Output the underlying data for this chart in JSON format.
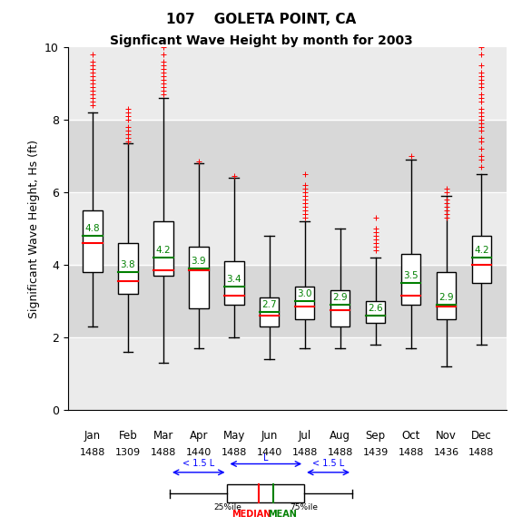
{
  "title_line1": "107    GOLETA POINT, CA",
  "title_line2": "Signficant Wave Height by month for 2003",
  "ylabel": "Significant Wave Height, Hs (ft)",
  "months": [
    "Jan",
    "Feb",
    "Mar",
    "Apr",
    "May",
    "Jun",
    "Jul",
    "Aug",
    "Sep",
    "Oct",
    "Nov",
    "Dec"
  ],
  "counts": [
    "1488",
    "1309",
    "1488",
    "1440",
    "1488",
    "1440",
    "1488",
    "1488",
    "1439",
    "1488",
    "1436",
    "1488"
  ],
  "ylim": [
    0,
    10
  ],
  "yticks": [
    0,
    2,
    4,
    6,
    8,
    10
  ],
  "box_data": {
    "Jan": {
      "q1": 3.8,
      "median": 4.6,
      "q3": 5.5,
      "whislo": 2.3,
      "whishi": 8.2,
      "mean": 4.8,
      "fliers_above": [
        8.4,
        8.5,
        8.6,
        8.7,
        8.8,
        8.9,
        9.0,
        9.1,
        9.2,
        9.3,
        9.4,
        9.5,
        9.6,
        9.8,
        10.1
      ]
    },
    "Feb": {
      "q1": 3.2,
      "median": 3.55,
      "q3": 4.6,
      "whislo": 1.6,
      "whishi": 7.35,
      "mean": 3.8,
      "fliers_above": [
        7.4,
        7.5,
        7.6,
        7.7,
        7.8,
        8.0,
        8.1,
        8.2,
        8.3
      ]
    },
    "Mar": {
      "q1": 3.7,
      "median": 3.85,
      "q3": 5.2,
      "whislo": 1.3,
      "whishi": 8.6,
      "mean": 4.2,
      "fliers_above": [
        8.7,
        8.8,
        8.9,
        9.0,
        9.1,
        9.2,
        9.3,
        9.4,
        9.5,
        9.6,
        9.8,
        10.0
      ]
    },
    "Apr": {
      "q1": 2.8,
      "median": 3.85,
      "q3": 4.5,
      "whislo": 1.7,
      "whishi": 6.8,
      "mean": 3.9,
      "fliers_above": [
        6.85
      ]
    },
    "May": {
      "q1": 2.9,
      "median": 3.15,
      "q3": 4.1,
      "whislo": 2.0,
      "whishi": 6.4,
      "mean": 3.4,
      "fliers_above": [
        6.45
      ]
    },
    "Jun": {
      "q1": 2.3,
      "median": 2.6,
      "q3": 3.1,
      "whislo": 1.4,
      "whishi": 4.8,
      "mean": 2.7,
      "fliers_above": []
    },
    "Jul": {
      "q1": 2.5,
      "median": 2.85,
      "q3": 3.4,
      "whislo": 1.7,
      "whishi": 5.2,
      "mean": 3.0,
      "fliers_above": [
        5.3,
        5.4,
        5.5,
        5.6,
        5.7,
        5.8,
        5.9,
        6.0,
        6.1,
        6.2,
        6.5
      ]
    },
    "Aug": {
      "q1": 2.3,
      "median": 2.75,
      "q3": 3.3,
      "whislo": 1.7,
      "whishi": 5.0,
      "mean": 2.9,
      "fliers_above": []
    },
    "Sep": {
      "q1": 2.4,
      "median": 2.6,
      "q3": 3.0,
      "whislo": 1.8,
      "whishi": 4.2,
      "mean": 2.6,
      "fliers_above": [
        4.4,
        4.5,
        4.6,
        4.7,
        4.8,
        4.9,
        5.0,
        5.3
      ]
    },
    "Oct": {
      "q1": 2.9,
      "median": 3.15,
      "q3": 4.3,
      "whislo": 1.7,
      "whishi": 6.9,
      "mean": 3.5,
      "fliers_above": [
        7.0
      ]
    },
    "Nov": {
      "q1": 2.5,
      "median": 2.85,
      "q3": 3.8,
      "whislo": 1.2,
      "whishi": 5.9,
      "mean": 2.9,
      "fliers_above": [
        6.0,
        6.1,
        5.3,
        5.4,
        5.5,
        5.6,
        5.7,
        5.8
      ]
    },
    "Dec": {
      "q1": 3.5,
      "median": 4.0,
      "q3": 4.8,
      "whislo": 1.8,
      "whishi": 6.5,
      "mean": 4.2,
      "fliers_above": [
        6.7,
        6.9,
        7.0,
        7.2,
        7.4,
        7.5,
        7.7,
        7.8,
        7.9,
        8.0,
        8.1,
        8.2,
        8.3,
        8.5,
        8.6,
        8.7,
        8.9,
        9.0,
        9.1,
        9.2,
        9.3,
        9.5,
        9.8,
        10.0
      ]
    }
  },
  "box_color": "white",
  "median_color": "red",
  "mean_color": "green",
  "flier_color": "red",
  "whisker_color": "black",
  "box_edge_color": "black",
  "background_gray": "#e8e8e8",
  "band_edges": [
    0,
    2,
    4,
    6,
    8,
    10
  ],
  "band_cols": [
    "#ebebeb",
    "#d8d8d8",
    "#ebebeb",
    "#d8d8d8",
    "#ebebeb"
  ]
}
